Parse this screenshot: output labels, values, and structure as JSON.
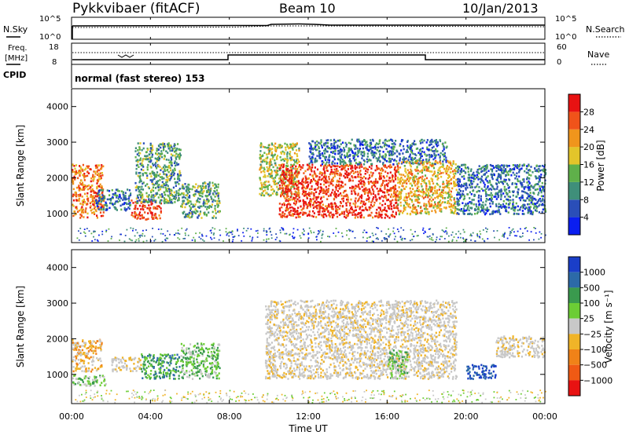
{
  "header": {
    "station": "Pykkvibaer (fitACF)",
    "beam": "Beam 10",
    "date": "10/Jan/2013"
  },
  "noise_panel": {
    "left_label": "N.Sky",
    "right_label": "N.Search",
    "left_ticks": [
      "10^5",
      "10^0"
    ],
    "right_ticks": [
      "10^5",
      "10^0"
    ]
  },
  "freq_panel": {
    "left_label_1": "Freq.",
    "left_label_2": "[MHz]",
    "left_ticks": [
      "18",
      "8"
    ],
    "right_label": "Nave",
    "right_ticks": [
      "60",
      "0"
    ]
  },
  "cpid": {
    "label": "CPID",
    "mode_text": "normal (fast stereo) 153"
  },
  "chart_data": [
    {
      "type": "heatmap",
      "name": "power",
      "ylabel": "Slant Range [km]",
      "xlabel": "",
      "ylim": [
        180,
        4500
      ],
      "yticks": [
        "1000",
        "2000",
        "3000",
        "4000"
      ],
      "xlim_hours": [
        0,
        24
      ],
      "colorbar": {
        "label": "Power [dB]",
        "levels": [
          0,
          4,
          8,
          12,
          16,
          20,
          24,
          28,
          32
        ],
        "ticks": [
          "4",
          "8",
          "12",
          "16",
          "20",
          "24",
          "28"
        ],
        "colors": [
          "#0a1ef0",
          "#2a4eb8",
          "#3f8f7a",
          "#5fb04a",
          "#e3c52a",
          "#f0951c",
          "#f0531a",
          "#e81212"
        ]
      },
      "regions": [
        {
          "t_start": 0.0,
          "t_end": 1.6,
          "r_min": 900,
          "r_max": 2400,
          "level": 24
        },
        {
          "t_start": 1.2,
          "t_end": 3.0,
          "r_min": 1100,
          "r_max": 1700,
          "level": 8
        },
        {
          "t_start": 3.0,
          "t_end": 4.5,
          "r_min": 850,
          "r_max": 1400,
          "level": 28
        },
        {
          "t_start": 3.2,
          "t_end": 5.5,
          "r_min": 1300,
          "r_max": 3000,
          "level": 12
        },
        {
          "t_start": 5.5,
          "t_end": 7.5,
          "r_min": 900,
          "r_max": 1900,
          "level": 12
        },
        {
          "t_start": 9.5,
          "t_end": 11.5,
          "r_min": 1500,
          "r_max": 3000,
          "level": 16
        },
        {
          "t_start": 10.5,
          "t_end": 16.5,
          "r_min": 900,
          "r_max": 2400,
          "level": 28
        },
        {
          "t_start": 12.0,
          "t_end": 19.0,
          "r_min": 2400,
          "r_max": 3100,
          "level": 8
        },
        {
          "t_start": 16.5,
          "t_end": 19.5,
          "r_min": 1000,
          "r_max": 2500,
          "level": 20
        },
        {
          "t_start": 19.5,
          "t_end": 24.0,
          "r_min": 1000,
          "r_max": 2400,
          "level": 8
        }
      ]
    },
    {
      "type": "heatmap",
      "name": "velocity",
      "ylabel": "Slant Range [km]",
      "xlabel": "Time UT",
      "ylim": [
        180,
        4500
      ],
      "yticks": [
        "1000",
        "2000",
        "3000",
        "4000"
      ],
      "xticks": [
        "00:00",
        "04:00",
        "08:00",
        "12:00",
        "16:00",
        "20:00",
        "00:00"
      ],
      "colorbar": {
        "label": "Velocity [m s⁻¹]",
        "ticks": [
          "1000",
          "500",
          "100",
          "25",
          "−25",
          "−100",
          "−500",
          "−1000"
        ],
        "colors": [
          "#1a3ec8",
          "#2c6aa8",
          "#3a9a4e",
          "#6ccd35",
          "#c8c8c8",
          "#f0b428",
          "#f08218",
          "#f05a14",
          "#e81212"
        ]
      },
      "regions": [
        {
          "t_start": 0.0,
          "t_end": 1.5,
          "r_min": 1100,
          "r_max": 2000,
          "class": "orange"
        },
        {
          "t_start": 0.0,
          "t_end": 1.8,
          "r_min": 700,
          "r_max": 1000,
          "class": "green"
        },
        {
          "t_start": 2.0,
          "t_end": 3.5,
          "r_min": 1100,
          "r_max": 1500,
          "class": "gray"
        },
        {
          "t_start": 3.5,
          "t_end": 5.5,
          "r_min": 900,
          "r_max": 1600,
          "class": "darkgreen"
        },
        {
          "t_start": 5.5,
          "t_end": 7.5,
          "r_min": 900,
          "r_max": 1900,
          "class": "green"
        },
        {
          "t_start": 9.8,
          "t_end": 19.5,
          "r_min": 900,
          "r_max": 3100,
          "class": "gray"
        },
        {
          "t_start": 16.0,
          "t_end": 17.0,
          "r_min": 900,
          "r_max": 1700,
          "class": "green"
        },
        {
          "t_start": 20.0,
          "t_end": 21.5,
          "r_min": 900,
          "r_max": 1300,
          "class": "blue"
        },
        {
          "t_start": 21.5,
          "t_end": 24.0,
          "r_min": 1500,
          "r_max": 2100,
          "class": "gray"
        }
      ]
    }
  ]
}
